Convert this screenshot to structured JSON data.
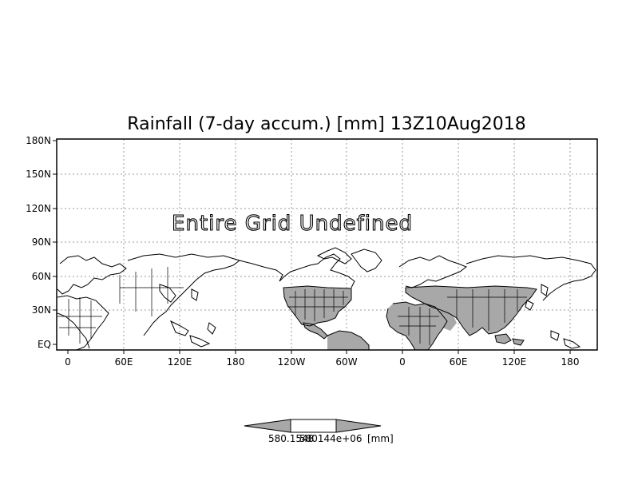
{
  "title": "Rainfall (7-day accum.) [mm] 13Z10Aug2018",
  "overlay_text": "Entire Grid Undefined",
  "lat_labels": [
    "180N",
    "150N",
    "120N",
    "90N",
    "60N",
    "30N",
    "EQ"
  ],
  "lon_labels": [
    "0",
    "60E",
    "120E",
    "180",
    "120W",
    "60W",
    "0",
    "60E",
    "120E",
    "180"
  ],
  "colorbar": {
    "label_left": "580.1548",
    "label_right": "580144e+06",
    "units": "[mm]"
  },
  "colors": {
    "land_shading": "#a8a8a8",
    "coast": "#000000",
    "grid": "#9a9a9a"
  }
}
